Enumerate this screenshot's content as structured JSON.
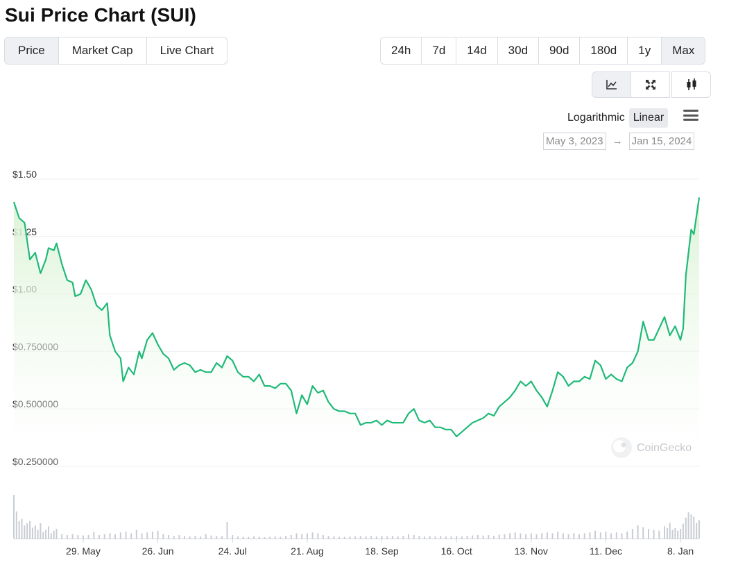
{
  "title": "Sui Price Chart (SUI)",
  "tabs": [
    {
      "label": "Price",
      "active": true
    },
    {
      "label": "Market Cap",
      "active": false
    },
    {
      "label": "Live Chart",
      "active": false
    }
  ],
  "ranges": [
    {
      "label": "24h",
      "active": false
    },
    {
      "label": "7d",
      "active": false
    },
    {
      "label": "14d",
      "active": false
    },
    {
      "label": "30d",
      "active": false
    },
    {
      "label": "90d",
      "active": false
    },
    {
      "label": "180d",
      "active": false
    },
    {
      "label": "1y",
      "active": false
    },
    {
      "label": "Max",
      "active": true
    }
  ],
  "chart_icons": [
    {
      "icon": "line-chart-icon",
      "active": true
    },
    {
      "icon": "expand-icon",
      "active": false
    },
    {
      "icon": "candlestick-icon",
      "active": false
    }
  ],
  "scale": {
    "logarithmic": "Logarithmic",
    "linear": "Linear",
    "active": "linear"
  },
  "menu_icon": "hamburger-menu-icon",
  "date_range": {
    "from": "May 3, 2023",
    "arrow": "→",
    "to": "Jan 15, 2024"
  },
  "watermark": "CoinGecko",
  "colors": {
    "line": "#1fb978",
    "fill_top": "#d9f2d3",
    "volume": "#c8ccd3",
    "grid": "#eceef1"
  },
  "chart_data": {
    "type": "area",
    "grid": true,
    "y_scale": "linear",
    "ylim": [
      0.25,
      1.5
    ],
    "y_ticks": [
      {
        "value": 1.5,
        "label": "$1.50"
      },
      {
        "value": 1.25,
        "label": "$1.25"
      },
      {
        "value": 1.0,
        "label": "$1.00"
      },
      {
        "value": 0.75,
        "label": "$0.750000"
      },
      {
        "value": 0.5,
        "label": "$0.500000"
      },
      {
        "value": 0.25,
        "label": "$0.250000"
      }
    ],
    "x_ticks": [
      {
        "date": "2023-05-29",
        "label": "29. May"
      },
      {
        "date": "2023-06-26",
        "label": "26. Jun"
      },
      {
        "date": "2023-07-24",
        "label": "24. Jul"
      },
      {
        "date": "2023-08-21",
        "label": "21. Aug"
      },
      {
        "date": "2023-09-18",
        "label": "18. Sep"
      },
      {
        "date": "2023-10-16",
        "label": "16. Oct"
      },
      {
        "date": "2023-11-13",
        "label": "13. Nov"
      },
      {
        "date": "2023-12-11",
        "label": "11. Dec"
      },
      {
        "date": "2024-01-08",
        "label": "8. Jan"
      }
    ],
    "price_series": [
      [
        "2023-05-03",
        1.4
      ],
      [
        "2023-05-05",
        1.33
      ],
      [
        "2023-05-07",
        1.31
      ],
      [
        "2023-05-09",
        1.15
      ],
      [
        "2023-05-11",
        1.18
      ],
      [
        "2023-05-13",
        1.09
      ],
      [
        "2023-05-15",
        1.15
      ],
      [
        "2023-05-16",
        1.2
      ],
      [
        "2023-05-18",
        1.19
      ],
      [
        "2023-05-19",
        1.22
      ],
      [
        "2023-05-21",
        1.13
      ],
      [
        "2023-05-23",
        1.06
      ],
      [
        "2023-05-25",
        1.05
      ],
      [
        "2023-05-26",
        0.99
      ],
      [
        "2023-05-28",
        1.0
      ],
      [
        "2023-05-30",
        1.06
      ],
      [
        "2023-06-01",
        1.02
      ],
      [
        "2023-06-03",
        0.95
      ],
      [
        "2023-06-05",
        0.93
      ],
      [
        "2023-06-07",
        0.96
      ],
      [
        "2023-06-08",
        0.82
      ],
      [
        "2023-06-10",
        0.75
      ],
      [
        "2023-06-12",
        0.72
      ],
      [
        "2023-06-13",
        0.62
      ],
      [
        "2023-06-15",
        0.68
      ],
      [
        "2023-06-17",
        0.65
      ],
      [
        "2023-06-19",
        0.75
      ],
      [
        "2023-06-20",
        0.72
      ],
      [
        "2023-06-22",
        0.8
      ],
      [
        "2023-06-24",
        0.83
      ],
      [
        "2023-06-26",
        0.78
      ],
      [
        "2023-06-28",
        0.74
      ],
      [
        "2023-06-30",
        0.72
      ],
      [
        "2023-07-02",
        0.67
      ],
      [
        "2023-07-04",
        0.69
      ],
      [
        "2023-07-06",
        0.7
      ],
      [
        "2023-07-08",
        0.69
      ],
      [
        "2023-07-10",
        0.66
      ],
      [
        "2023-07-12",
        0.67
      ],
      [
        "2023-07-14",
        0.66
      ],
      [
        "2023-07-16",
        0.66
      ],
      [
        "2023-07-18",
        0.7
      ],
      [
        "2023-07-20",
        0.68
      ],
      [
        "2023-07-22",
        0.73
      ],
      [
        "2023-07-24",
        0.71
      ],
      [
        "2023-07-26",
        0.66
      ],
      [
        "2023-07-28",
        0.64
      ],
      [
        "2023-07-30",
        0.64
      ],
      [
        "2023-08-01",
        0.62
      ],
      [
        "2023-08-03",
        0.65
      ],
      [
        "2023-08-05",
        0.6
      ],
      [
        "2023-08-07",
        0.6
      ],
      [
        "2023-08-09",
        0.59
      ],
      [
        "2023-08-11",
        0.61
      ],
      [
        "2023-08-13",
        0.61
      ],
      [
        "2023-08-15",
        0.58
      ],
      [
        "2023-08-17",
        0.48
      ],
      [
        "2023-08-19",
        0.56
      ],
      [
        "2023-08-21",
        0.52
      ],
      [
        "2023-08-23",
        0.6
      ],
      [
        "2023-08-25",
        0.57
      ],
      [
        "2023-08-27",
        0.58
      ],
      [
        "2023-08-29",
        0.53
      ],
      [
        "2023-08-31",
        0.5
      ],
      [
        "2023-09-02",
        0.49
      ],
      [
        "2023-09-04",
        0.49
      ],
      [
        "2023-09-06",
        0.48
      ],
      [
        "2023-09-08",
        0.48
      ],
      [
        "2023-09-10",
        0.43
      ],
      [
        "2023-09-12",
        0.44
      ],
      [
        "2023-09-14",
        0.44
      ],
      [
        "2023-09-16",
        0.45
      ],
      [
        "2023-09-18",
        0.43
      ],
      [
        "2023-09-20",
        0.45
      ],
      [
        "2023-09-22",
        0.44
      ],
      [
        "2023-09-24",
        0.44
      ],
      [
        "2023-09-26",
        0.44
      ],
      [
        "2023-09-28",
        0.48
      ],
      [
        "2023-09-30",
        0.5
      ],
      [
        "2023-10-02",
        0.45
      ],
      [
        "2023-10-04",
        0.44
      ],
      [
        "2023-10-06",
        0.45
      ],
      [
        "2023-10-08",
        0.42
      ],
      [
        "2023-10-10",
        0.42
      ],
      [
        "2023-10-12",
        0.41
      ],
      [
        "2023-10-14",
        0.41
      ],
      [
        "2023-10-16",
        0.38
      ],
      [
        "2023-10-18",
        0.4
      ],
      [
        "2023-10-20",
        0.42
      ],
      [
        "2023-10-22",
        0.44
      ],
      [
        "2023-10-24",
        0.45
      ],
      [
        "2023-10-26",
        0.46
      ],
      [
        "2023-10-28",
        0.48
      ],
      [
        "2023-10-30",
        0.47
      ],
      [
        "2023-11-01",
        0.51
      ],
      [
        "2023-11-03",
        0.53
      ],
      [
        "2023-11-05",
        0.55
      ],
      [
        "2023-11-07",
        0.58
      ],
      [
        "2023-11-09",
        0.62
      ],
      [
        "2023-11-11",
        0.6
      ],
      [
        "2023-11-13",
        0.62
      ],
      [
        "2023-11-15",
        0.58
      ],
      [
        "2023-11-17",
        0.55
      ],
      [
        "2023-11-19",
        0.51
      ],
      [
        "2023-11-21",
        0.58
      ],
      [
        "2023-11-23",
        0.66
      ],
      [
        "2023-11-25",
        0.64
      ],
      [
        "2023-11-27",
        0.6
      ],
      [
        "2023-11-29",
        0.62
      ],
      [
        "2023-12-01",
        0.62
      ],
      [
        "2023-12-03",
        0.64
      ],
      [
        "2023-12-05",
        0.63
      ],
      [
        "2023-12-07",
        0.71
      ],
      [
        "2023-12-09",
        0.69
      ],
      [
        "2023-12-11",
        0.63
      ],
      [
        "2023-12-13",
        0.65
      ],
      [
        "2023-12-15",
        0.63
      ],
      [
        "2023-12-17",
        0.62
      ],
      [
        "2023-12-19",
        0.68
      ],
      [
        "2023-12-21",
        0.7
      ],
      [
        "2023-12-23",
        0.75
      ],
      [
        "2023-12-25",
        0.88
      ],
      [
        "2023-12-27",
        0.8
      ],
      [
        "2023-12-29",
        0.8
      ],
      [
        "2023-12-31",
        0.85
      ],
      [
        "2024-01-02",
        0.9
      ],
      [
        "2024-01-04",
        0.82
      ],
      [
        "2024-01-06",
        0.86
      ],
      [
        "2024-01-08",
        0.8
      ],
      [
        "2024-01-09",
        0.85
      ],
      [
        "2024-01-10",
        1.08
      ],
      [
        "2024-01-12",
        1.28
      ],
      [
        "2024-01-13",
        1.26
      ],
      [
        "2024-01-15",
        1.42
      ]
    ],
    "volume_series": [
      [
        "2023-05-03",
        1.0
      ],
      [
        "2023-05-04",
        0.62
      ],
      [
        "2023-05-05",
        0.4
      ],
      [
        "2023-05-06",
        0.45
      ],
      [
        "2023-05-07",
        0.3
      ],
      [
        "2023-05-08",
        0.35
      ],
      [
        "2023-05-09",
        0.4
      ],
      [
        "2023-05-10",
        0.25
      ],
      [
        "2023-05-11",
        0.3
      ],
      [
        "2023-05-12",
        0.2
      ],
      [
        "2023-05-13",
        0.35
      ],
      [
        "2023-05-14",
        0.15
      ],
      [
        "2023-05-15",
        0.2
      ],
      [
        "2023-05-16",
        0.28
      ],
      [
        "2023-05-17",
        0.12
      ],
      [
        "2023-05-18",
        0.18
      ],
      [
        "2023-05-19",
        0.22
      ],
      [
        "2023-05-21",
        0.1
      ],
      [
        "2023-05-23",
        0.08
      ],
      [
        "2023-05-25",
        0.1
      ],
      [
        "2023-05-27",
        0.08
      ],
      [
        "2023-05-29",
        0.07
      ],
      [
        "2023-05-31",
        0.08
      ],
      [
        "2023-06-02",
        0.15
      ],
      [
        "2023-06-04",
        0.08
      ],
      [
        "2023-06-06",
        0.1
      ],
      [
        "2023-06-08",
        0.12
      ],
      [
        "2023-06-10",
        0.1
      ],
      [
        "2023-06-12",
        0.14
      ],
      [
        "2023-06-14",
        0.16
      ],
      [
        "2023-06-16",
        0.12
      ],
      [
        "2023-06-18",
        0.2
      ],
      [
        "2023-06-20",
        0.12
      ],
      [
        "2023-06-22",
        0.14
      ],
      [
        "2023-06-24",
        0.16
      ],
      [
        "2023-06-26",
        0.18
      ],
      [
        "2023-06-28",
        0.1
      ],
      [
        "2023-06-30",
        0.08
      ],
      [
        "2023-07-02",
        0.06
      ],
      [
        "2023-07-04",
        0.08
      ],
      [
        "2023-07-06",
        0.06
      ],
      [
        "2023-07-08",
        0.05
      ],
      [
        "2023-07-10",
        0.06
      ],
      [
        "2023-07-12",
        0.05
      ],
      [
        "2023-07-14",
        0.1
      ],
      [
        "2023-07-16",
        0.07
      ],
      [
        "2023-07-18",
        0.06
      ],
      [
        "2023-07-20",
        0.06
      ],
      [
        "2023-07-22",
        0.38
      ],
      [
        "2023-07-24",
        0.08
      ],
      [
        "2023-07-26",
        0.05
      ],
      [
        "2023-07-28",
        0.04
      ],
      [
        "2023-07-30",
        0.04
      ],
      [
        "2023-08-01",
        0.05
      ],
      [
        "2023-08-03",
        0.04
      ],
      [
        "2023-08-05",
        0.03
      ],
      [
        "2023-08-07",
        0.04
      ],
      [
        "2023-08-09",
        0.05
      ],
      [
        "2023-08-11",
        0.04
      ],
      [
        "2023-08-13",
        0.06
      ],
      [
        "2023-08-15",
        0.08
      ],
      [
        "2023-08-17",
        0.12
      ],
      [
        "2023-08-19",
        0.1
      ],
      [
        "2023-08-21",
        0.12
      ],
      [
        "2023-08-23",
        0.14
      ],
      [
        "2023-08-25",
        0.12
      ],
      [
        "2023-08-27",
        0.08
      ],
      [
        "2023-08-29",
        0.06
      ],
      [
        "2023-08-31",
        0.05
      ],
      [
        "2023-09-02",
        0.04
      ],
      [
        "2023-09-04",
        0.04
      ],
      [
        "2023-09-06",
        0.05
      ],
      [
        "2023-09-08",
        0.05
      ],
      [
        "2023-09-10",
        0.06
      ],
      [
        "2023-09-12",
        0.05
      ],
      [
        "2023-09-14",
        0.06
      ],
      [
        "2023-09-16",
        0.05
      ],
      [
        "2023-09-18",
        0.06
      ],
      [
        "2023-09-20",
        0.05
      ],
      [
        "2023-09-22",
        0.06
      ],
      [
        "2023-09-24",
        0.05
      ],
      [
        "2023-09-26",
        0.06
      ],
      [
        "2023-09-28",
        0.1
      ],
      [
        "2023-09-30",
        0.08
      ],
      [
        "2023-10-02",
        0.06
      ],
      [
        "2023-10-04",
        0.05
      ],
      [
        "2023-10-06",
        0.06
      ],
      [
        "2023-10-08",
        0.05
      ],
      [
        "2023-10-10",
        0.06
      ],
      [
        "2023-10-12",
        0.05
      ],
      [
        "2023-10-14",
        0.05
      ],
      [
        "2023-10-16",
        0.06
      ],
      [
        "2023-10-18",
        0.05
      ],
      [
        "2023-10-20",
        0.06
      ],
      [
        "2023-10-22",
        0.07
      ],
      [
        "2023-10-24",
        0.08
      ],
      [
        "2023-10-26",
        0.07
      ],
      [
        "2023-10-28",
        0.08
      ],
      [
        "2023-10-30",
        0.06
      ],
      [
        "2023-11-01",
        0.09
      ],
      [
        "2023-11-03",
        0.1
      ],
      [
        "2023-11-05",
        0.12
      ],
      [
        "2023-11-07",
        0.14
      ],
      [
        "2023-11-09",
        0.12
      ],
      [
        "2023-11-11",
        0.1
      ],
      [
        "2023-11-13",
        0.12
      ],
      [
        "2023-11-15",
        0.1
      ],
      [
        "2023-11-17",
        0.12
      ],
      [
        "2023-11-19",
        0.14
      ],
      [
        "2023-11-21",
        0.12
      ],
      [
        "2023-11-23",
        0.16
      ],
      [
        "2023-11-25",
        0.12
      ],
      [
        "2023-11-27",
        0.1
      ],
      [
        "2023-11-29",
        0.12
      ],
      [
        "2023-12-01",
        0.1
      ],
      [
        "2023-12-03",
        0.12
      ],
      [
        "2023-12-05",
        0.14
      ],
      [
        "2023-12-07",
        0.18
      ],
      [
        "2023-12-09",
        0.14
      ],
      [
        "2023-12-11",
        0.16
      ],
      [
        "2023-12-13",
        0.12
      ],
      [
        "2023-12-15",
        0.14
      ],
      [
        "2023-12-17",
        0.12
      ],
      [
        "2023-12-19",
        0.16
      ],
      [
        "2023-12-21",
        0.22
      ],
      [
        "2023-12-23",
        0.3
      ],
      [
        "2023-12-25",
        0.26
      ],
      [
        "2023-12-27",
        0.22
      ],
      [
        "2023-12-29",
        0.2
      ],
      [
        "2023-12-31",
        0.18
      ],
      [
        "2024-01-02",
        0.28
      ],
      [
        "2024-01-03",
        0.24
      ],
      [
        "2024-01-04",
        0.36
      ],
      [
        "2024-01-05",
        0.2
      ],
      [
        "2024-01-06",
        0.24
      ],
      [
        "2024-01-07",
        0.18
      ],
      [
        "2024-01-08",
        0.22
      ],
      [
        "2024-01-09",
        0.34
      ],
      [
        "2024-01-10",
        0.48
      ],
      [
        "2024-01-11",
        0.6
      ],
      [
        "2024-01-12",
        0.55
      ],
      [
        "2024-01-13",
        0.5
      ],
      [
        "2024-01-14",
        0.36
      ],
      [
        "2024-01-15",
        0.42
      ]
    ]
  }
}
